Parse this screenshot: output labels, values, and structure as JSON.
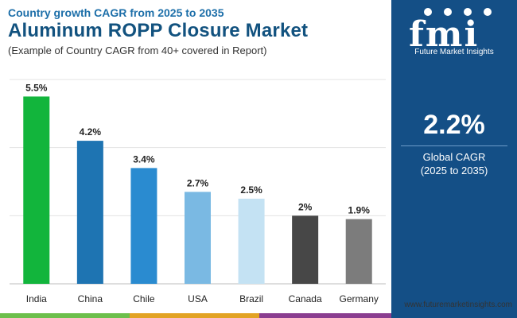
{
  "header": {
    "subtitle_top": "Country growth CAGR from 2025 to 2035",
    "title": "Aluminum ROPP Closure Market",
    "note": "(Example of Country CAGR from 40+ covered in Report)"
  },
  "side_panel": {
    "logo_letters": "fmi",
    "logo_text": "Future Market Insights",
    "kpi_value": "2.2%",
    "kpi_label": "Global CAGR",
    "kpi_sub": "(2025 to 2035)"
  },
  "footer": {
    "url": "www.futuremarketinsights.com"
  },
  "colors": {
    "title": "#12527f",
    "panel": "#144f86"
  },
  "chart_data": {
    "type": "bar",
    "categories": [
      "India",
      "China",
      "Chile",
      "USA",
      "Brazil",
      "Canada",
      "Germany"
    ],
    "values": [
      5.5,
      4.2,
      3.4,
      2.7,
      2.5,
      2.0,
      1.9
    ],
    "labels": [
      "5.5%",
      "4.2%",
      "3.4%",
      "2.7%",
      "2.5%",
      "2%",
      "1.9%"
    ],
    "colors": [
      "#12b53c",
      "#1e74b2",
      "#2a8bd0",
      "#7ab9e3",
      "#c4e2f3",
      "#474747",
      "#7c7c7c"
    ],
    "ylim": [
      0,
      6
    ],
    "grid": true,
    "xlabel": "",
    "ylabel": ""
  }
}
